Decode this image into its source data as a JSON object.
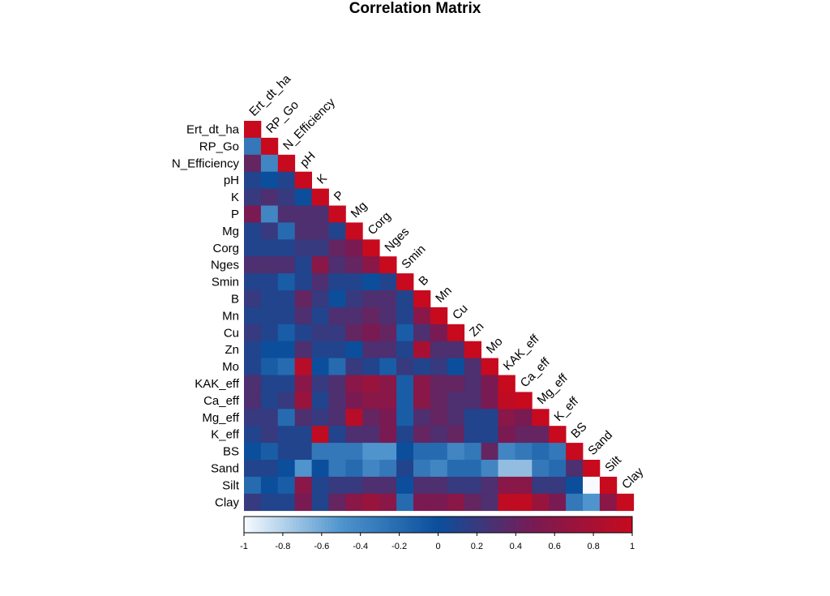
{
  "title": "Correlation Matrix",
  "chart_data": {
    "type": "heatmap",
    "title": "Correlation Matrix",
    "layout": "lower-triangle",
    "variables": [
      "Ert_dt_ha",
      "RP_Go",
      "N_Efficiency",
      "pH",
      "K",
      "P",
      "Mg",
      "Corg",
      "Nges",
      "Smin",
      "B",
      "Mn",
      "Cu",
      "Zn",
      "Mo",
      "KAK_eff",
      "Ca_eff",
      "Mg_eff",
      "K_eff",
      "BS",
      "Sand",
      "Silt",
      "Clay"
    ],
    "values": [
      [
        1
      ],
      [
        -0.3,
        1
      ],
      [
        0.4,
        -0.4,
        1
      ],
      [
        0.1,
        0.0,
        0.1,
        1
      ],
      [
        0.2,
        0.3,
        0.2,
        0.0,
        1
      ],
      [
        0.5,
        -0.4,
        0.3,
        0.3,
        0.3,
        1
      ],
      [
        0.1,
        0.2,
        -0.2,
        0.3,
        0.3,
        0.1,
        1
      ],
      [
        0.1,
        0.1,
        0.1,
        0.2,
        0.2,
        0.4,
        0.5,
        1
      ],
      [
        0.3,
        0.3,
        0.3,
        0.1,
        0.6,
        0.3,
        0.4,
        0.6,
        1
      ],
      [
        0.1,
        0.1,
        -0.1,
        0.1,
        0.3,
        0.1,
        0.1,
        0.0,
        0.1,
        1
      ],
      [
        0.2,
        0.1,
        0.1,
        0.4,
        0.2,
        0.0,
        0.2,
        0.3,
        0.3,
        0.1,
        1
      ],
      [
        0.1,
        0.1,
        0.1,
        0.3,
        0.1,
        0.3,
        0.3,
        0.4,
        0.3,
        0.1,
        0.6,
        1
      ],
      [
        0.2,
        0.1,
        -0.1,
        0.1,
        0.2,
        0.2,
        0.4,
        0.5,
        0.4,
        -0.1,
        0.3,
        0.5,
        1
      ],
      [
        0.1,
        0.0,
        0.0,
        0.3,
        0.1,
        0.1,
        0.0,
        0.3,
        0.3,
        0.1,
        0.8,
        0.3,
        0.3,
        1
      ],
      [
        0.1,
        -0.1,
        -0.2,
        0.9,
        0.0,
        -0.2,
        0.2,
        0.1,
        -0.1,
        0.2,
        0.1,
        0.2,
        0.0,
        0.3,
        1
      ],
      [
        0.3,
        0.1,
        0.1,
        0.6,
        0.2,
        0.3,
        0.6,
        0.7,
        0.6,
        -0.1,
        0.6,
        0.4,
        0.4,
        0.3,
        0.5,
        1
      ],
      [
        0.3,
        0.1,
        0.2,
        0.7,
        0.1,
        0.3,
        0.5,
        0.6,
        0.6,
        -0.1,
        0.6,
        0.4,
        0.3,
        0.3,
        0.5,
        0.95,
        1
      ],
      [
        0.2,
        0.2,
        -0.2,
        0.3,
        0.2,
        0.3,
        0.9,
        0.4,
        0.5,
        -0.1,
        0.3,
        0.4,
        0.3,
        0.1,
        0.1,
        0.6,
        0.5,
        1
      ],
      [
        0.1,
        0.2,
        0.1,
        0.1,
        0.95,
        0.1,
        0.3,
        0.3,
        0.5,
        0.1,
        0.4,
        0.3,
        0.4,
        0.1,
        0.1,
        0.5,
        0.4,
        0.4,
        1
      ],
      [
        0.0,
        -0.1,
        0.1,
        0.1,
        -0.3,
        -0.3,
        -0.3,
        -0.5,
        -0.5,
        0.0,
        -0.2,
        -0.2,
        -0.4,
        -0.3,
        0.4,
        -0.4,
        -0.3,
        -0.2,
        -0.3,
        1
      ],
      [
        0.1,
        0.1,
        0.0,
        -0.5,
        0.0,
        -0.3,
        -0.2,
        -0.4,
        -0.3,
        0.1,
        -0.3,
        -0.4,
        -0.2,
        -0.2,
        -0.4,
        -0.7,
        -0.7,
        -0.3,
        -0.2,
        0.3,
        1
      ],
      [
        -0.2,
        0.0,
        -0.1,
        0.6,
        0.1,
        0.2,
        0.2,
        0.3,
        0.3,
        0.0,
        0.3,
        0.3,
        0.2,
        0.2,
        0.3,
        0.6,
        0.6,
        0.2,
        0.2,
        0.0,
        -1.0,
        1
      ],
      [
        0.2,
        0.1,
        0.1,
        0.5,
        0.1,
        0.4,
        0.6,
        0.7,
        0.6,
        -0.2,
        0.5,
        0.5,
        0.6,
        0.4,
        0.3,
        0.95,
        0.95,
        0.7,
        0.5,
        -0.3,
        -0.5,
        0.6,
        1
      ]
    ],
    "colorbar": {
      "range": [
        -1,
        1
      ],
      "ticks": [
        "-1",
        "-0.8",
        "-0.6",
        "-0.4",
        "-0.2",
        "0",
        "0.2",
        "0.4",
        "0.6",
        "0.8",
        "1"
      ],
      "colors": {
        "low": "#f7fbff",
        "mid_low": "#4f94cd",
        "zero": "#0b4f9c",
        "mid_high": "#7a1a52",
        "high": "#c70a1e"
      }
    },
    "grid": false,
    "legend": "bottom"
  }
}
